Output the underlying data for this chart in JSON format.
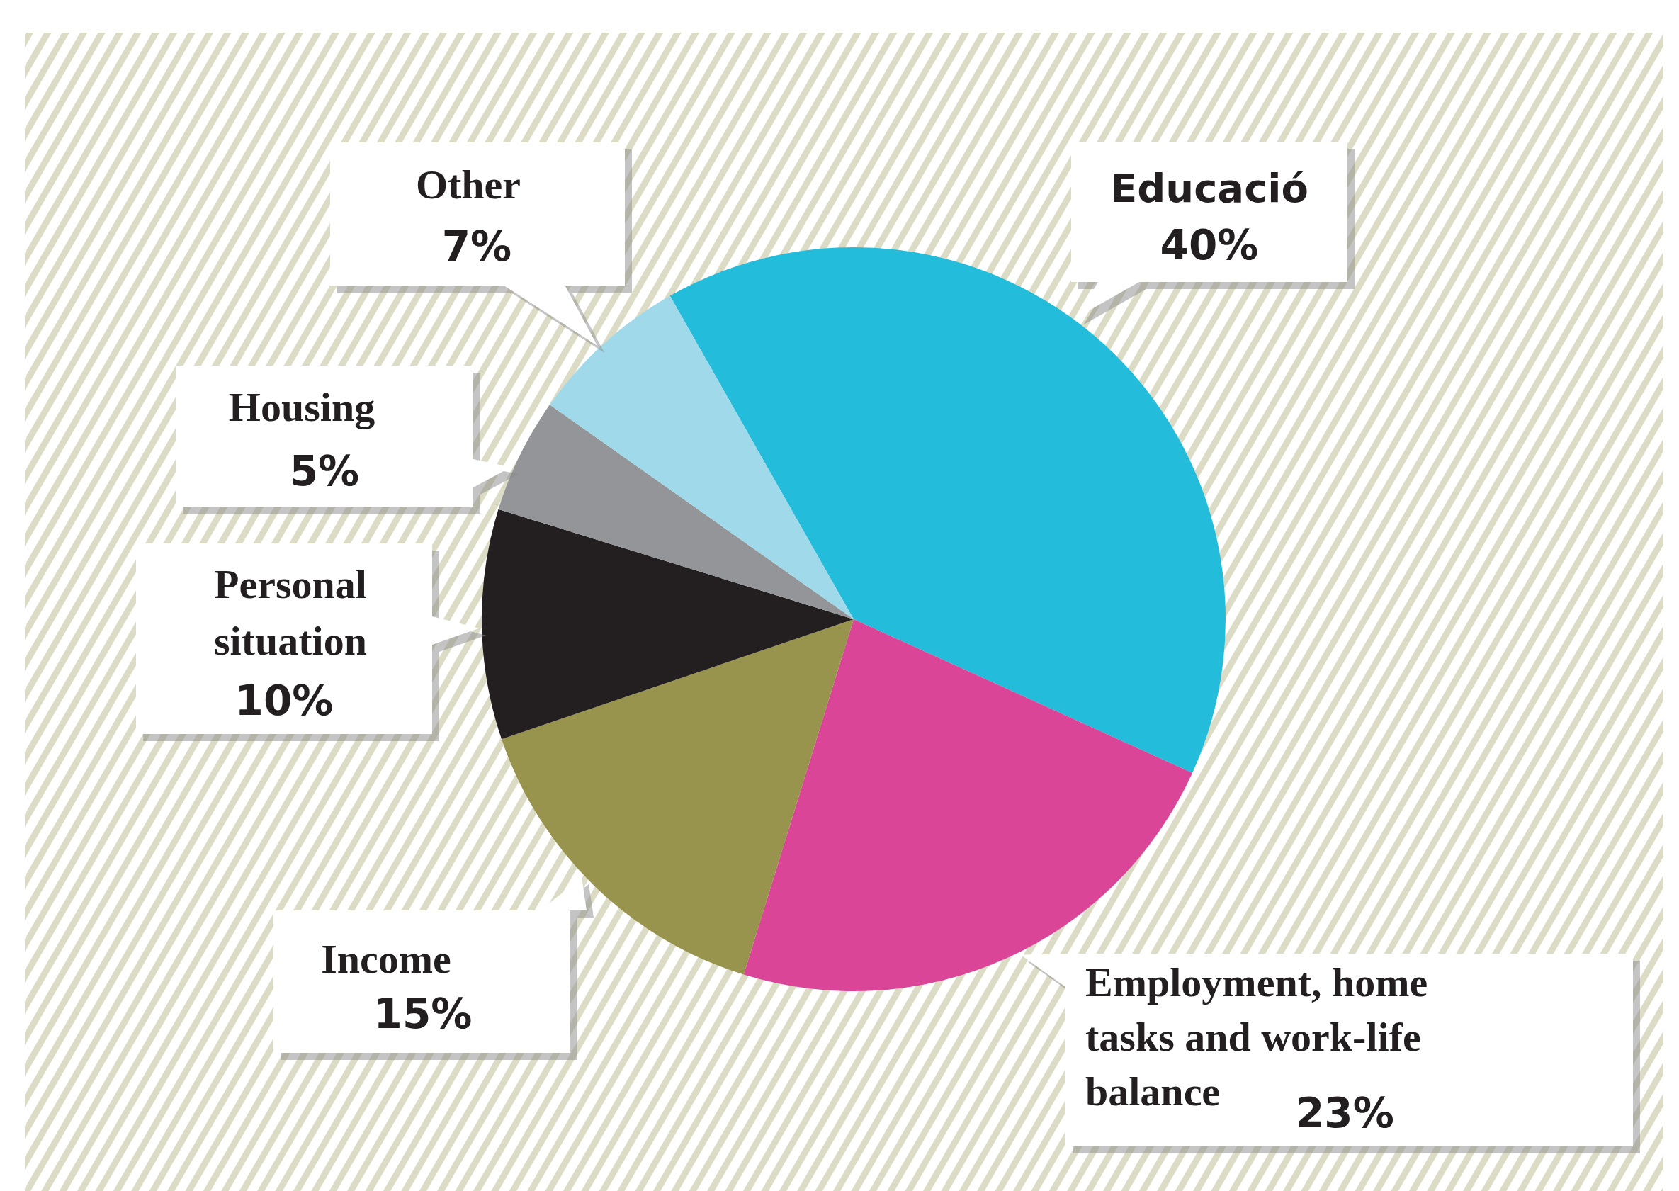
{
  "chart_data": {
    "type": "pie",
    "categories": [
      "Educació",
      "Employment, home tasks and work-life balance",
      "Income",
      "Personal situation",
      "Housing",
      "Other"
    ],
    "values": [
      40,
      23,
      15,
      10,
      5,
      7
    ],
    "colors": [
      "#23bcdb",
      "#db4597",
      "#98944d",
      "#231f20",
      "#939598",
      "#a0d9ea"
    ],
    "value_labels": [
      "40%",
      "23%",
      "15%",
      "10%",
      "5%",
      "7%"
    ]
  }
}
